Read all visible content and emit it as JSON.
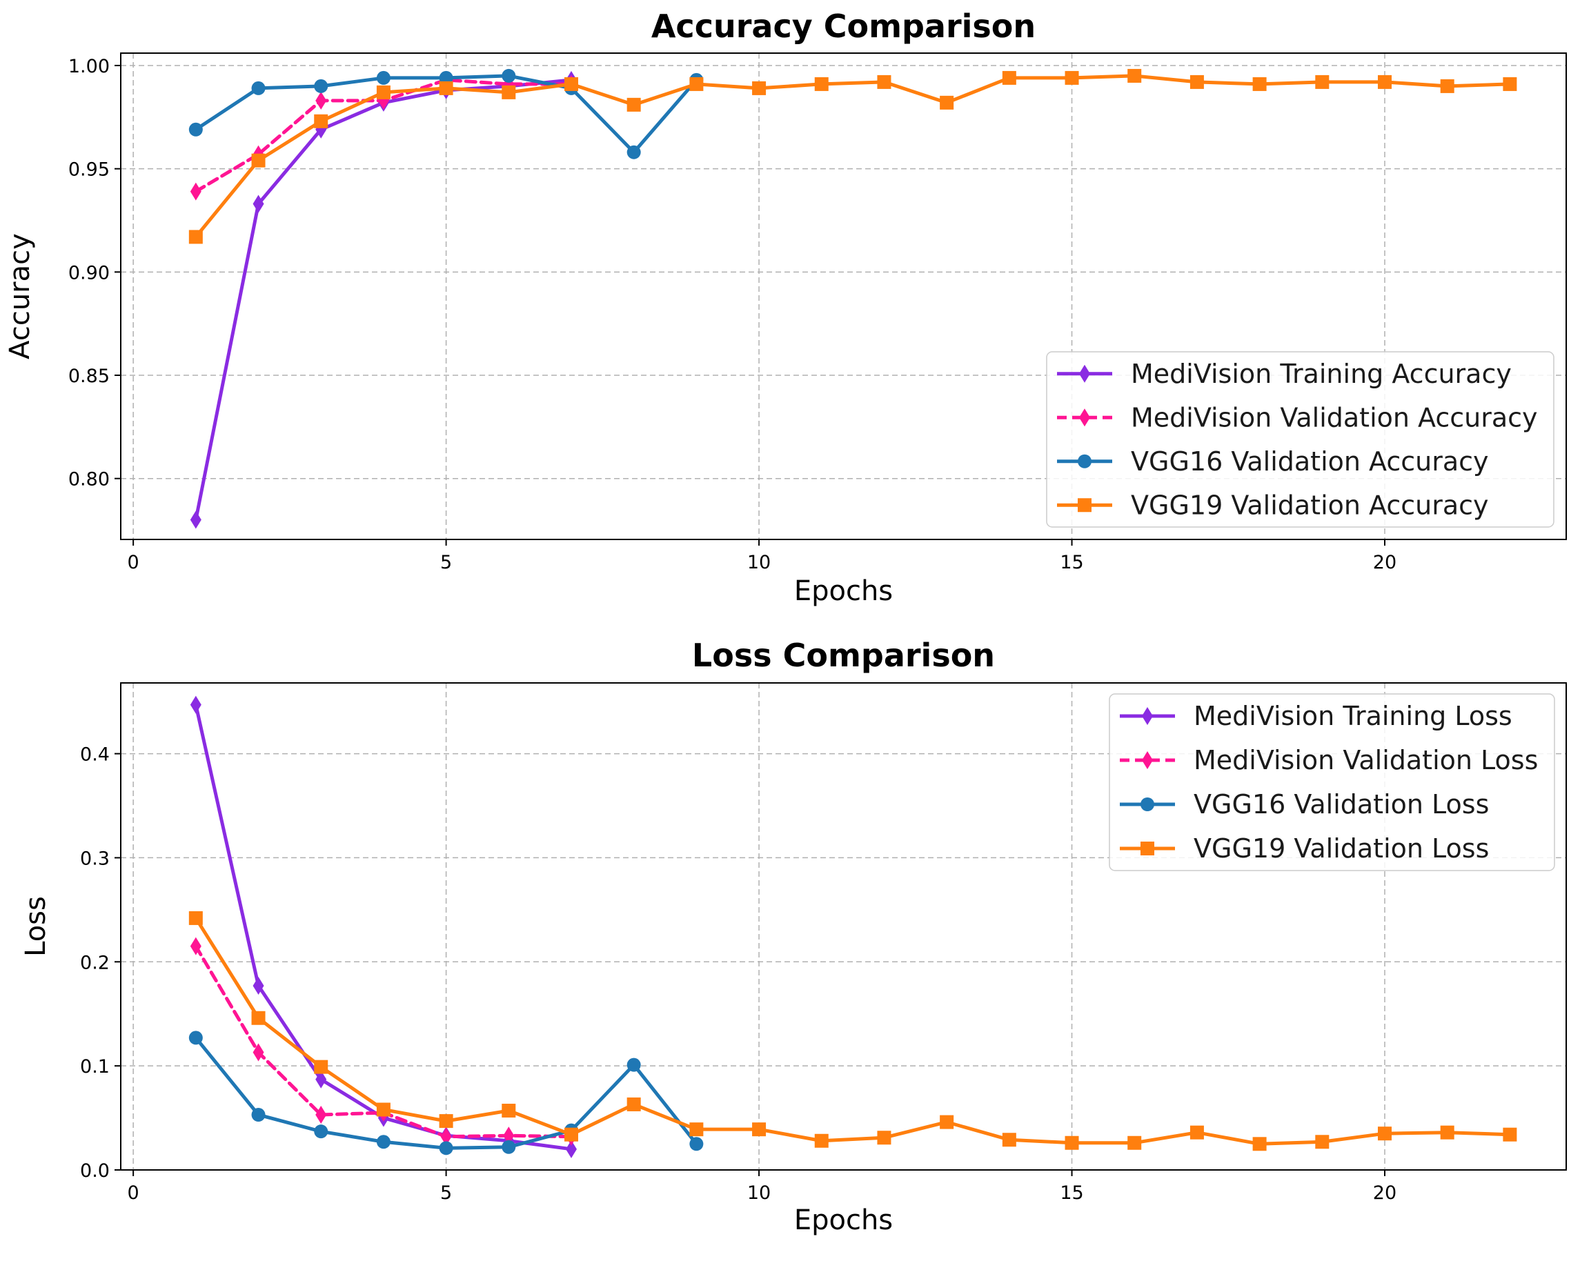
{
  "chart_data": [
    {
      "type": "line",
      "title": "Accuracy Comparison",
      "xlabel": "Epochs",
      "ylabel": "Accuracy",
      "xlim": [
        -0.2,
        22.9
      ],
      "ylim": [
        0.7705,
        1.006
      ],
      "xticks": [
        0,
        5,
        10,
        15,
        20
      ],
      "xtick_labels": [
        "0",
        "5",
        "10",
        "15",
        "20"
      ],
      "yticks": [
        0.8,
        0.85,
        0.9,
        0.95,
        1.0
      ],
      "ytick_labels": [
        "0.80",
        "0.85",
        "0.90",
        "0.95",
        "1.00"
      ],
      "grid": true,
      "legend_position": "lower-right",
      "series": [
        {
          "name": "MediVision Training Accuracy",
          "color": "#8a2be2",
          "dash": "solid",
          "marker": "diamond",
          "x": [
            1,
            2,
            3,
            4,
            5,
            6,
            7
          ],
          "y": [
            0.78,
            0.933,
            0.969,
            0.982,
            0.988,
            0.99,
            0.993
          ]
        },
        {
          "name": "MediVision Validation Accuracy",
          "color": "#ff1493",
          "dash": "dashed",
          "marker": "diamond",
          "x": [
            1,
            2,
            3,
            4,
            5,
            6,
            7
          ],
          "y": [
            0.939,
            0.957,
            0.983,
            0.983,
            0.993,
            0.991,
            0.991
          ]
        },
        {
          "name": "VGG16 Validation Accuracy",
          "color": "#1f77b4",
          "dash": "solid",
          "marker": "circle",
          "x": [
            1,
            2,
            3,
            4,
            5,
            6,
            7,
            8,
            9
          ],
          "y": [
            0.969,
            0.989,
            0.99,
            0.994,
            0.994,
            0.995,
            0.989,
            0.958,
            0.993
          ]
        },
        {
          "name": "VGG19 Validation Accuracy",
          "color": "#ff7f0e",
          "dash": "solid",
          "marker": "square",
          "x": [
            1,
            2,
            3,
            4,
            5,
            6,
            7,
            8,
            9,
            10,
            11,
            12,
            13,
            14,
            15,
            16,
            17,
            18,
            19,
            20,
            21,
            22
          ],
          "y": [
            0.917,
            0.954,
            0.973,
            0.987,
            0.989,
            0.987,
            0.991,
            0.981,
            0.991,
            0.989,
            0.991,
            0.992,
            0.982,
            0.994,
            0.994,
            0.995,
            0.992,
            0.991,
            0.992,
            0.992,
            0.99,
            0.991
          ]
        }
      ]
    },
    {
      "type": "line",
      "title": "Loss Comparison",
      "xlabel": "Epochs",
      "ylabel": "Loss",
      "xlim": [
        -0.2,
        22.9
      ],
      "ylim": [
        0.0,
        0.468
      ],
      "xticks": [
        0,
        5,
        10,
        15,
        20
      ],
      "xtick_labels": [
        "0",
        "5",
        "10",
        "15",
        "20"
      ],
      "yticks": [
        0.0,
        0.1,
        0.2,
        0.3,
        0.4
      ],
      "ytick_labels": [
        "0.0",
        "0.1",
        "0.2",
        "0.3",
        "0.4"
      ],
      "grid": true,
      "legend_position": "upper-right",
      "series": [
        {
          "name": "MediVision Training Loss",
          "color": "#8a2be2",
          "dash": "solid",
          "marker": "diamond",
          "x": [
            1,
            2,
            3,
            4,
            5,
            6,
            7
          ],
          "y": [
            0.447,
            0.177,
            0.087,
            0.05,
            0.033,
            0.028,
            0.02
          ]
        },
        {
          "name": "MediVision Validation Loss",
          "color": "#ff1493",
          "dash": "dashed",
          "marker": "diamond",
          "x": [
            1,
            2,
            3,
            4,
            5,
            6,
            7
          ],
          "y": [
            0.215,
            0.113,
            0.053,
            0.055,
            0.032,
            0.033,
            0.032
          ]
        },
        {
          "name": "VGG16 Validation Loss",
          "color": "#1f77b4",
          "dash": "solid",
          "marker": "circle",
          "x": [
            1,
            2,
            3,
            4,
            5,
            6,
            7,
            8,
            9
          ],
          "y": [
            0.127,
            0.053,
            0.037,
            0.027,
            0.021,
            0.022,
            0.038,
            0.101,
            0.025
          ]
        },
        {
          "name": "VGG19 Validation Loss",
          "color": "#ff7f0e",
          "dash": "solid",
          "marker": "square",
          "x": [
            1,
            2,
            3,
            4,
            5,
            6,
            7,
            8,
            9,
            10,
            11,
            12,
            13,
            14,
            15,
            16,
            17,
            18,
            19,
            20,
            21,
            22
          ],
          "y": [
            0.242,
            0.146,
            0.099,
            0.058,
            0.047,
            0.057,
            0.034,
            0.063,
            0.039,
            0.039,
            0.028,
            0.031,
            0.046,
            0.029,
            0.026,
            0.026,
            0.036,
            0.025,
            0.027,
            0.035,
            0.036,
            0.034
          ]
        }
      ]
    }
  ]
}
